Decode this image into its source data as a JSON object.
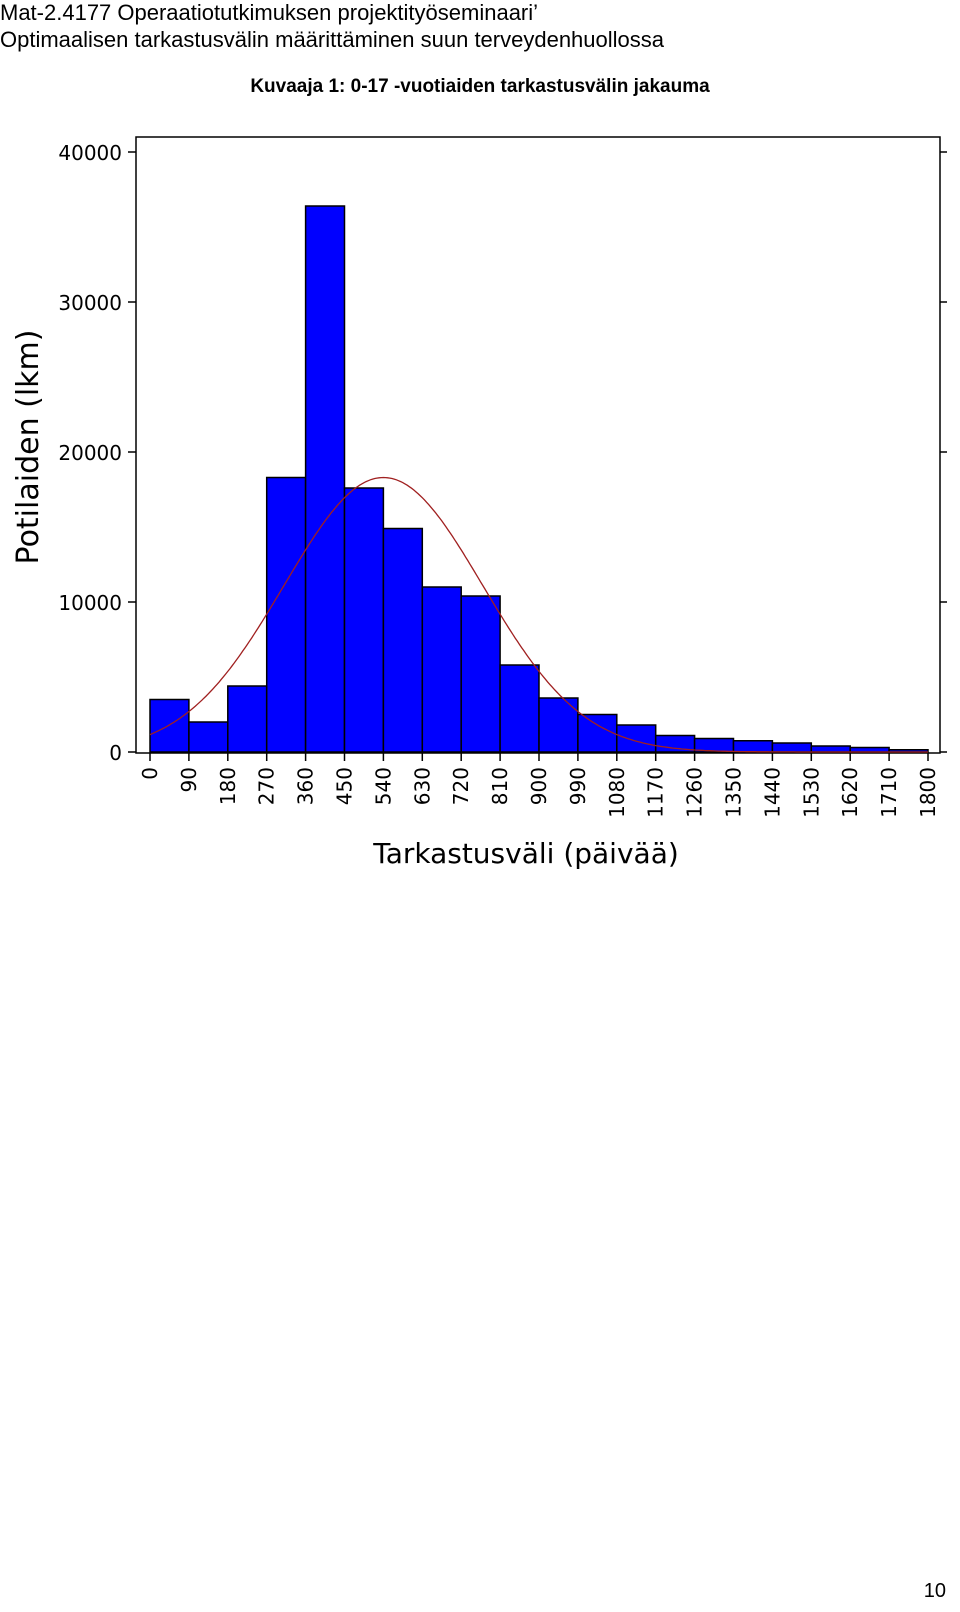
{
  "header": {
    "line1": "Mat-2.4177 Operaatiotutkimuksen projektityöseminaari’",
    "line2": "Optimaalisen tarkastusvälin määrittäminen suun terveydenhuollossa"
  },
  "figure_title": "Kuvaaja 1: 0-17 -vuotiaiden tarkastusvälin jakauma",
  "page_number": "10",
  "colors": {
    "bar": "#0000ff",
    "bar_edge": "#000000",
    "curve": "#a02020"
  },
  "chart_data": {
    "type": "bar",
    "title": "",
    "xlabel": "Tarkastusväli (päivää)",
    "ylabel": "Potilaiden (lkm)",
    "xlim": [
      0,
      1800
    ],
    "ylim": [
      0,
      40000
    ],
    "x_ticks": [
      0,
      90,
      180,
      270,
      360,
      450,
      540,
      630,
      720,
      810,
      900,
      990,
      1080,
      1170,
      1260,
      1350,
      1440,
      1530,
      1620,
      1710,
      1800
    ],
    "y_ticks": [
      0,
      10000,
      20000,
      30000,
      40000
    ],
    "bin_width": 90,
    "bin_starts": [
      0,
      90,
      180,
      270,
      360,
      450,
      540,
      630,
      720,
      810,
      900,
      990,
      1080,
      1170,
      1260,
      1350,
      1440,
      1530,
      1620,
      1710
    ],
    "values": [
      3500,
      2000,
      4400,
      18300,
      36400,
      17600,
      14900,
      11000,
      10400,
      5800,
      3600,
      2500,
      1800,
      1100,
      900,
      750,
      600,
      400,
      300,
      150
    ],
    "fitted_curve": {
      "type": "normal",
      "mean": 540,
      "sd": 230,
      "peak": 18300
    }
  }
}
